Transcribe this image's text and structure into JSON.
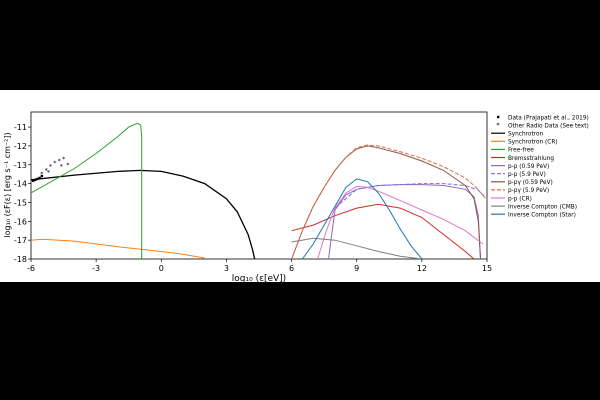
{
  "chart_data": {
    "type": "line",
    "xlabel": "log$_{10}$ ($\\epsilon$[eV])",
    "ylabel": "log$_{10}$ ($\\epsilon$F($\\epsilon$) [erg s$^{-1}$ cm$^{-2}$])",
    "xlabel_display": "log₁₀ (ε[eV])",
    "ylabel_display": "log₁₀ (εF(ε) [erg s⁻¹ cm⁻²])",
    "xlim": [
      -6,
      15
    ],
    "ylim": [
      -18,
      -10.2
    ],
    "xticks": [
      -6,
      -3,
      0,
      3,
      6,
      9,
      12,
      15
    ],
    "xtick_labels": [
      "-6",
      "-3",
      "0",
      "3",
      "6",
      "9",
      "12",
      "15"
    ],
    "yticks": [
      -18,
      -17,
      -16,
      -15,
      -14,
      -13,
      -12,
      -11
    ],
    "ytick_labels": [
      "-18",
      "-17",
      "-16",
      "-15",
      "-14",
      "-13",
      "-12",
      "-11"
    ],
    "grid": false,
    "legend_placement": "outside right",
    "points": [
      {
        "name": "Data (Prajapati et al., 2019)",
        "marker": "square",
        "color": "#000000",
        "x": [
          -5.9,
          -5.8,
          -5.7,
          -5.6,
          -5.5
        ],
        "y": [
          -13.85,
          -13.8,
          -13.75,
          -13.7,
          -13.6
        ]
      },
      {
        "name": "Other Radio Data (See text)",
        "marker": "star",
        "color": "#000000",
        "x": [
          -5.5,
          -5.3,
          -5.1,
          -4.9,
          -4.7,
          -4.5,
          -5.2,
          -4.6,
          -4.3
        ],
        "y": [
          -13.5,
          -13.3,
          -13.1,
          -12.9,
          -12.8,
          -12.7,
          -13.4,
          -13.1,
          -13.0
        ]
      }
    ],
    "series": [
      {
        "name": "Synchrotron",
        "color": "#000000",
        "width": 1.3,
        "x": [
          -6,
          -4,
          -2,
          -1,
          0,
          1,
          2,
          3,
          3.5,
          4,
          4.2,
          4.3
        ],
        "y": [
          -13.8,
          -13.55,
          -13.35,
          -13.3,
          -13.35,
          -13.6,
          -14,
          -14.8,
          -15.5,
          -16.7,
          -17.5,
          -18
        ]
      },
      {
        "name": "Synchrotron (CR)",
        "color": "#ff7f0e",
        "width": 1,
        "x": [
          -6,
          -5.5,
          -4,
          -2,
          0,
          1,
          2
        ],
        "y": [
          -17,
          -16.95,
          -17.05,
          -17.35,
          -17.6,
          -17.75,
          -17.95
        ]
      },
      {
        "name": "Free-free",
        "color": "#2ca02c",
        "width": 1,
        "x": [
          -6,
          -4,
          -3,
          -2,
          -1.5,
          -1.1,
          -0.95,
          -0.9,
          -0.9
        ],
        "y": [
          -14.5,
          -13.2,
          -12.4,
          -11.5,
          -11.0,
          -10.8,
          -10.9,
          -11.5,
          -18
        ]
      },
      {
        "name": "Bremsstrahlung",
        "color": "#d62728",
        "width": 1,
        "x": [
          6,
          7,
          8,
          9,
          10,
          11,
          12,
          13,
          14,
          14.4
        ],
        "y": [
          -16.5,
          -16.2,
          -15.7,
          -15.3,
          -15.1,
          -15.3,
          -15.8,
          -16.7,
          -17.6,
          -18
        ]
      },
      {
        "name": "p-p (0.59 PeV)",
        "color": "#9467bd",
        "width": 1,
        "x": [
          7.7,
          8,
          8.5,
          9,
          10,
          11,
          12,
          13,
          14,
          14.4,
          14.6,
          14.7
        ],
        "y": [
          -18,
          -15.4,
          -14.6,
          -14.3,
          -14.1,
          -14.05,
          -14.05,
          -14.1,
          -14.3,
          -14.7,
          -15.7,
          -18
        ]
      },
      {
        "name": "p-p (5.9 PeV)",
        "color": "#7b68ee",
        "width": 1,
        "dash": "4,2",
        "x": [
          8,
          9,
          10,
          11,
          12,
          13,
          14,
          14.6,
          14.9
        ],
        "y": [
          -15.3,
          -14.3,
          -14.1,
          -14.05,
          -14,
          -14,
          -14.1,
          -14.35,
          -14.7
        ]
      },
      {
        "name": "p-p$\\gamma$ (0.59 PeV)",
        "color": "#8c564b",
        "width": 1,
        "x": [
          6,
          6.5,
          7,
          7.5,
          8,
          8.5,
          9,
          9.5,
          10,
          11,
          12,
          13,
          14,
          14.4,
          14.6,
          14.7
        ],
        "y": [
          -18,
          -16.5,
          -15.2,
          -14.2,
          -13.3,
          -12.6,
          -12.15,
          -12.0,
          -12.1,
          -12.4,
          -12.8,
          -13.3,
          -14.1,
          -14.8,
          -16,
          -18
        ]
      },
      {
        "name": "p-p$\\gamma$ (5.9 PeV)",
        "color": "#e66b3c",
        "width": 1,
        "dash": "4,2",
        "x": [
          6,
          6.5,
          7,
          7.5,
          8,
          8.5,
          9,
          9.5,
          10,
          11,
          12,
          13,
          14,
          14.5,
          14.8,
          15
        ],
        "y": [
          -18,
          -16.5,
          -15.2,
          -14.2,
          -13.3,
          -12.6,
          -12.1,
          -11.95,
          -12.0,
          -12.3,
          -12.65,
          -13.1,
          -13.7,
          -14.2,
          -14.6,
          -14.9
        ]
      },
      {
        "name": "p-p (CR)",
        "color": "#e377c2",
        "width": 1,
        "x": [
          7.2,
          7.6,
          8,
          8.5,
          9,
          9.5,
          10,
          11,
          12,
          13,
          14,
          14.8
        ],
        "y": [
          -18,
          -16.5,
          -15.3,
          -14.5,
          -14.15,
          -14.2,
          -14.4,
          -14.9,
          -15.4,
          -15.9,
          -16.5,
          -17.2
        ]
      },
      {
        "name": "Inverse Compton (CMB)",
        "color": "#7f7f7f",
        "width": 1,
        "x": [
          6,
          7,
          8,
          9,
          10,
          11,
          12
        ],
        "y": [
          -17.1,
          -16.9,
          -17.0,
          -17.3,
          -17.6,
          -17.85,
          -18
        ]
      },
      {
        "name": "Inverse Compton (Star)",
        "color": "#1f77b4",
        "width": 1,
        "x": [
          6.5,
          7,
          7.5,
          8,
          8.5,
          9,
          9.5,
          10,
          10.5,
          11,
          11.5,
          12
        ],
        "y": [
          -18,
          -17.2,
          -16.2,
          -15.2,
          -14.2,
          -13.75,
          -13.9,
          -14.5,
          -15.4,
          -16.4,
          -17.3,
          -18
        ]
      }
    ]
  }
}
